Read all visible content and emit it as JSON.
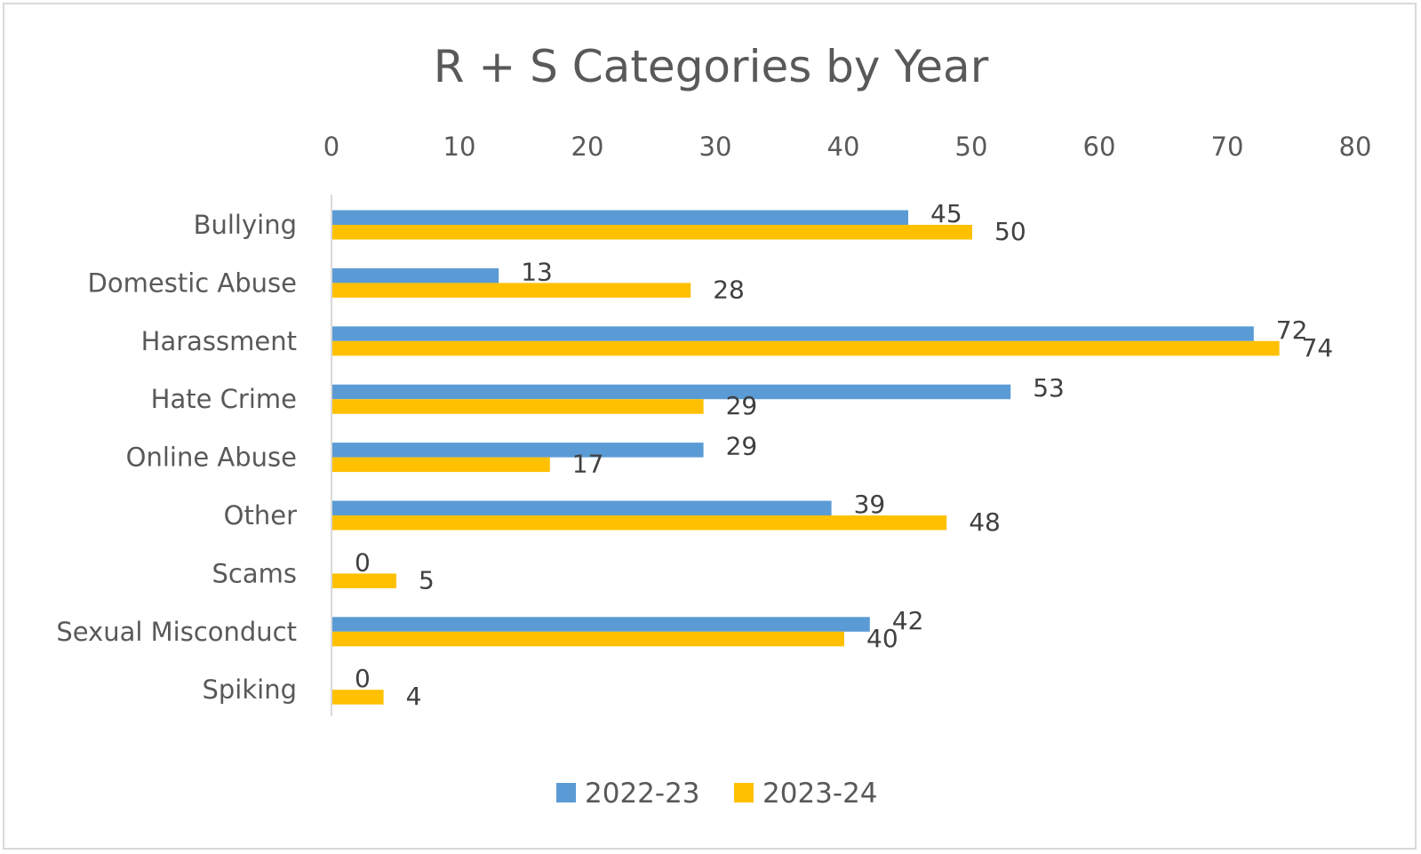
{
  "chart_data": {
    "type": "bar",
    "orientation": "horizontal",
    "title": "R + S Categories by Year",
    "categories": [
      "Bullying",
      "Domestic Abuse",
      "Harassment",
      "Hate Crime",
      "Online Abuse",
      "Other",
      "Scams",
      "Sexual Misconduct",
      "Spiking"
    ],
    "series": [
      {
        "name": "2022-23",
        "color": "#5b9bd5",
        "values": [
          45,
          13,
          72,
          53,
          29,
          39,
          0,
          42,
          0
        ]
      },
      {
        "name": "2023-24",
        "color": "#ffc000",
        "values": [
          50,
          28,
          74,
          29,
          17,
          48,
          5,
          40,
          4
        ]
      }
    ],
    "xlim": [
      0,
      80
    ],
    "xticks": [
      0,
      10,
      20,
      30,
      40,
      50,
      60,
      70,
      80
    ],
    "xaxis_position": "top",
    "xlabel": "",
    "ylabel": "",
    "grid": false,
    "legend": "bottom"
  }
}
